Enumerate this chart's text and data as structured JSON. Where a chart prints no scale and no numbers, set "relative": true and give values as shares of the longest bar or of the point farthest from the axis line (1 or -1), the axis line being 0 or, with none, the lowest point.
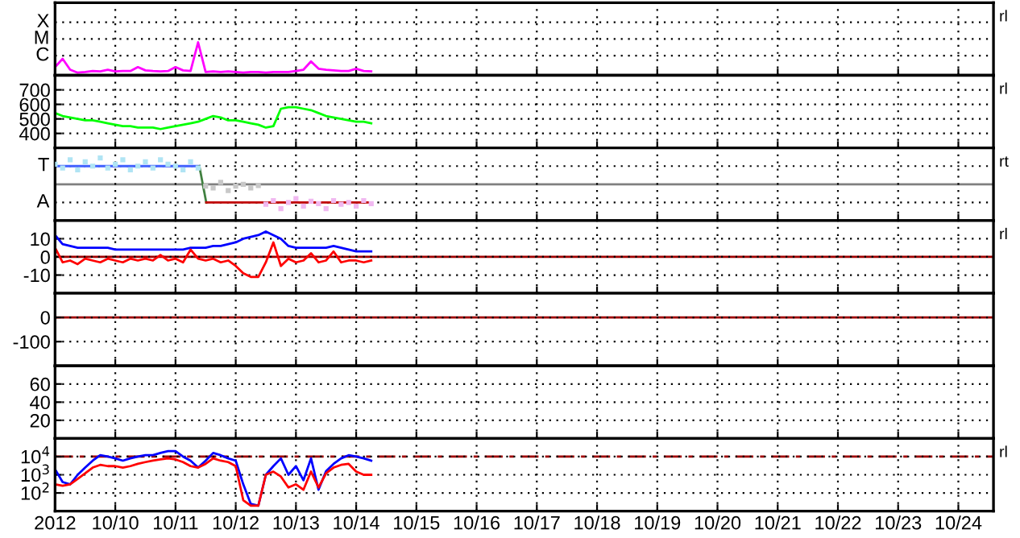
{
  "chart_data": [
    {
      "type": "line",
      "grid": "x",
      "relative": true,
      "tick_labels": false,
      "xlim": [
        "2012-10-09",
        "2012-10-24T14:00"
      ],
      "xticks": [
        {
          "value": "2012-10-10",
          "label": null
        },
        {
          "value": "2012-10-11",
          "label": null
        },
        {
          "value": "2012-10-12",
          "label": null
        },
        {
          "value": "2012-10-13",
          "label": null
        },
        {
          "value": "2012-10-14",
          "label": null
        },
        {
          "value": "2012-10-15",
          "label": null
        },
        {
          "value": "2012-10-16",
          "label": null
        },
        {
          "value": "2012-10-17",
          "label": null
        },
        {
          "value": "2012-10-18",
          "label": null
        },
        {
          "value": "2012-10-19",
          "label": null
        },
        {
          "value": "2012-10-20",
          "label": null
        },
        {
          "value": "2012-10-21",
          "label": null
        },
        {
          "value": "2012-10-22",
          "label": null
        },
        {
          "value": "2012-10-23",
          "label": null
        },
        {
          "value": "2012-10-24",
          "label": null
        }
      ],
      "x": [
        "2012-10-09T00:00",
        "2012-10-09T03:00",
        "2012-10-09T06:00",
        "2012-10-09T09:00",
        "2012-10-09T12:00",
        "2012-10-09T15:00",
        "2012-10-09T18:00",
        "2012-10-09T21:00",
        "2012-10-10T00:00",
        "2012-10-10T03:00",
        "2012-10-10T06:00",
        "2012-10-10T09:00",
        "2012-10-10T12:00",
        "2012-10-10T15:00",
        "2012-10-10T18:00",
        "2012-10-10T21:00",
        "2012-10-11T00:00",
        "2012-10-11T03:00",
        "2012-10-11T06:00",
        "2012-10-11T09:00",
        "2012-10-11T12:00",
        "2012-10-11T15:00",
        "2012-10-11T18:00",
        "2012-10-11T21:00",
        "2012-10-12T00:00",
        "2012-10-12T03:00",
        "2012-10-12T06:00",
        "2012-10-12T09:00",
        "2012-10-12T12:00",
        "2012-10-12T15:00",
        "2012-10-12T18:00",
        "2012-10-12T21:00",
        "2012-10-13T00:00",
        "2012-10-13T03:00",
        "2012-10-13T06:00",
        "2012-10-13T09:00",
        "2012-10-13T12:00",
        "2012-10-13T15:00",
        "2012-10-13T18:00",
        "2012-10-13T21:00",
        "2012-10-14T00:00",
        "2012-10-14T03:00",
        "2012-10-14T06:00"
      ],
      "series": [
        {
          "color": "#ff00ff",
          "values": [
            0.25,
            0.5,
            0.17,
            0.08,
            0.1,
            0.13,
            0.12,
            0.17,
            0.12,
            0.13,
            0.13,
            0.25,
            0.15,
            0.13,
            0.12,
            0.13,
            0.25,
            0.15,
            0.13,
            1,
            0.1,
            0.12,
            0.1,
            0.12,
            0.1,
            0.08,
            0.1,
            0.1,
            0.08,
            0.1,
            0.1,
            0.1,
            0.13,
            0.17,
            0.42,
            0.2,
            0.17,
            0.15,
            0.13,
            0.13,
            0.2,
            0.13,
            0.12
          ]
        }
      ],
      "annotations": [
        "rl",
        "X",
        "M",
        "C"
      ]
    },
    {
      "type": "line",
      "grid": true,
      "tick_labels": "y",
      "ylim": [
        300,
        800
      ],
      "yticks": [
        400,
        500,
        600,
        700
      ],
      "xlim": [
        "2012-10-09",
        "2012-10-24T14:00"
      ],
      "xticks": [
        {
          "value": "2012-10-10",
          "label": null
        },
        {
          "value": "2012-10-11",
          "label": null
        },
        {
          "value": "2012-10-12",
          "label": null
        },
        {
          "value": "2012-10-13",
          "label": null
        },
        {
          "value": "2012-10-14",
          "label": null
        },
        {
          "value": "2012-10-15",
          "label": null
        },
        {
          "value": "2012-10-16",
          "label": null
        },
        {
          "value": "2012-10-17",
          "label": null
        },
        {
          "value": "2012-10-18",
          "label": null
        },
        {
          "value": "2012-10-19",
          "label": null
        },
        {
          "value": "2012-10-20",
          "label": null
        },
        {
          "value": "2012-10-21",
          "label": null
        },
        {
          "value": "2012-10-22",
          "label": null
        },
        {
          "value": "2012-10-23",
          "label": null
        },
        {
          "value": "2012-10-24",
          "label": null
        }
      ],
      "x": [
        "2012-10-09T00:00",
        "2012-10-09T03:00",
        "2012-10-09T06:00",
        "2012-10-09T09:00",
        "2012-10-09T12:00",
        "2012-10-09T15:00",
        "2012-10-09T18:00",
        "2012-10-09T21:00",
        "2012-10-10T00:00",
        "2012-10-10T03:00",
        "2012-10-10T06:00",
        "2012-10-10T09:00",
        "2012-10-10T12:00",
        "2012-10-10T15:00",
        "2012-10-10T18:00",
        "2012-10-10T21:00",
        "2012-10-11T00:00",
        "2012-10-11T03:00",
        "2012-10-11T06:00",
        "2012-10-11T09:00",
        "2012-10-11T12:00",
        "2012-10-11T15:00",
        "2012-10-11T18:00",
        "2012-10-11T21:00",
        "2012-10-12T00:00",
        "2012-10-12T03:00",
        "2012-10-12T06:00",
        "2012-10-12T09:00",
        "2012-10-12T12:00",
        "2012-10-12T15:00",
        "2012-10-12T18:00",
        "2012-10-12T21:00",
        "2012-10-13T00:00",
        "2012-10-13T03:00",
        "2012-10-13T06:00",
        "2012-10-13T09:00",
        "2012-10-13T12:00",
        "2012-10-13T15:00",
        "2012-10-13T18:00",
        "2012-10-13T21:00",
        "2012-10-14T00:00",
        "2012-10-14T03:00",
        "2012-10-14T06:00"
      ],
      "series": [
        {
          "color": "#00ff00",
          "values": [
            540,
            520,
            510,
            500,
            490,
            490,
            480,
            470,
            460,
            450,
            450,
            440,
            440,
            440,
            430,
            440,
            450,
            460,
            470,
            480,
            500,
            520,
            510,
            490,
            490,
            480,
            470,
            460,
            440,
            450,
            570,
            580,
            580,
            570,
            560,
            540,
            520,
            510,
            500,
            490,
            480,
            480,
            470
          ]
        }
      ],
      "annotations": [
        "rl"
      ]
    },
    {
      "type": "scatter",
      "grid": "x",
      "relative": true,
      "tick_labels": false,
      "xlim": [
        "2012-10-09",
        "2012-10-24T14:00"
      ],
      "xticks": [
        {
          "value": "2012-10-10",
          "label": null
        },
        {
          "value": "2012-10-11",
          "label": null
        },
        {
          "value": "2012-10-12",
          "label": null
        },
        {
          "value": "2012-10-13",
          "label": null
        },
        {
          "value": "2012-10-14",
          "label": null
        },
        {
          "value": "2012-10-15",
          "label": null
        },
        {
          "value": "2012-10-16",
          "label": null
        },
        {
          "value": "2012-10-17",
          "label": null
        },
        {
          "value": "2012-10-18",
          "label": null
        },
        {
          "value": "2012-10-19",
          "label": null
        },
        {
          "value": "2012-10-20",
          "label": null
        },
        {
          "value": "2012-10-21",
          "label": null
        },
        {
          "value": "2012-10-22",
          "label": null
        },
        {
          "value": "2012-10-23",
          "label": null
        },
        {
          "value": "2012-10-24",
          "label": null
        }
      ],
      "ref_lines": [
        {
          "axis": "y",
          "value": 0.58,
          "label": null,
          "color": "#808080"
        }
      ],
      "series": [
        {
          "color": "#b0e4f4",
          "marker": "square",
          "x": [
            "2012-10-09T00:00",
            "2012-10-09T03:00",
            "2012-10-09T06:00",
            "2012-10-09T09:00",
            "2012-10-09T12:00",
            "2012-10-09T15:00",
            "2012-10-09T18:00",
            "2012-10-09T21:00",
            "2012-10-10T00:00",
            "2012-10-10T03:00",
            "2012-10-10T06:00",
            "2012-10-10T09:00",
            "2012-10-10T12:00",
            "2012-10-10T15:00",
            "2012-10-10T18:00",
            "2012-10-10T21:00",
            "2012-10-11T00:00",
            "2012-10-11T03:00",
            "2012-10-11T06:00",
            "2012-10-11T09:00"
          ],
          "values": [
            0.9,
            0.84,
            0.97,
            0.81,
            0.94,
            0.87,
            1,
            0.84,
            0.9,
            0.97,
            0.81,
            0.87,
            0.94,
            0.84,
            0.97,
            0.9,
            0.87,
            0.81,
            0.94,
            0.84
          ]
        },
        {
          "color": "#c8c8c8",
          "marker": "square",
          "x": [
            "2012-10-11T12:00",
            "2012-10-11T15:00",
            "2012-10-11T18:00",
            "2012-10-11T21:00",
            "2012-10-12T00:00",
            "2012-10-12T03:00",
            "2012-10-12T06:00",
            "2012-10-12T09:00"
          ],
          "values": [
            0.55,
            0.52,
            0.61,
            0.48,
            0.55,
            0.58,
            0.52,
            0.56
          ]
        },
        {
          "color": "#f0b8f0",
          "marker": "square",
          "x": [
            "2012-10-12T12:00",
            "2012-10-12T15:00",
            "2012-10-12T18:00",
            "2012-10-12T21:00",
            "2012-10-13T00:00",
            "2012-10-13T03:00",
            "2012-10-13T06:00",
            "2012-10-13T09:00",
            "2012-10-13T12:00",
            "2012-10-13T15:00",
            "2012-10-13T18:00",
            "2012-10-13T21:00",
            "2012-10-14T00:00",
            "2012-10-14T03:00",
            "2012-10-14T06:00"
          ],
          "values": [
            0.26,
            0.32,
            0.19,
            0.29,
            0.35,
            0.23,
            0.31,
            0.27,
            0.19,
            0.32,
            0.26,
            0.29,
            0.23,
            0.32,
            0.27
          ]
        },
        {
          "type": "line",
          "color": "#4060ff",
          "x": [
            "2012-10-09T00:00",
            "2012-10-11T09:30"
          ],
          "values": [
            0.87,
            0.87
          ]
        },
        {
          "type": "line",
          "color": "#408040",
          "x": [
            "2012-10-11T09:30",
            "2012-10-11T12:15"
          ],
          "values": [
            0.87,
            0.29
          ]
        },
        {
          "type": "line",
          "color": "#c00000",
          "x": [
            "2012-10-11T12:15",
            "2012-10-14T05:30"
          ],
          "values": [
            0.29,
            0.29
          ]
        }
      ],
      "annotations": [
        "rt",
        "T",
        "A"
      ]
    },
    {
      "type": "line",
      "grid": true,
      "tick_labels": "y",
      "ylim": [
        -20,
        20
      ],
      "yticks": [
        -10,
        0,
        10
      ],
      "xlim": [
        "2012-10-09",
        "2012-10-24T14:00"
      ],
      "xticks": [
        {
          "value": "2012-10-10",
          "label": null
        },
        {
          "value": "2012-10-11",
          "label": null
        },
        {
          "value": "2012-10-12",
          "label": null
        },
        {
          "value": "2012-10-13",
          "label": null
        },
        {
          "value": "2012-10-14",
          "label": null
        },
        {
          "value": "2012-10-15",
          "label": null
        },
        {
          "value": "2012-10-16",
          "label": null
        },
        {
          "value": "2012-10-17",
          "label": null
        },
        {
          "value": "2012-10-18",
          "label": null
        },
        {
          "value": "2012-10-19",
          "label": null
        },
        {
          "value": "2012-10-20",
          "label": null
        },
        {
          "value": "2012-10-21",
          "label": null
        },
        {
          "value": "2012-10-22",
          "label": null
        },
        {
          "value": "2012-10-23",
          "label": null
        },
        {
          "value": "2012-10-24",
          "label": null
        }
      ],
      "ref_lines": [
        {
          "axis": "y",
          "value": 0,
          "label": null,
          "color": "#a00000"
        }
      ],
      "x": [
        "2012-10-09T00:00",
        "2012-10-09T03:00",
        "2012-10-09T06:00",
        "2012-10-09T09:00",
        "2012-10-09T12:00",
        "2012-10-09T15:00",
        "2012-10-09T18:00",
        "2012-10-09T21:00",
        "2012-10-10T00:00",
        "2012-10-10T03:00",
        "2012-10-10T06:00",
        "2012-10-10T09:00",
        "2012-10-10T12:00",
        "2012-10-10T15:00",
        "2012-10-10T18:00",
        "2012-10-10T21:00",
        "2012-10-11T00:00",
        "2012-10-11T03:00",
        "2012-10-11T06:00",
        "2012-10-11T09:00",
        "2012-10-11T12:00",
        "2012-10-11T15:00",
        "2012-10-11T18:00",
        "2012-10-11T21:00",
        "2012-10-12T00:00",
        "2012-10-12T03:00",
        "2012-10-12T06:00",
        "2012-10-12T09:00",
        "2012-10-12T12:00",
        "2012-10-12T15:00",
        "2012-10-12T18:00",
        "2012-10-12T21:00",
        "2012-10-13T00:00",
        "2012-10-13T03:00",
        "2012-10-13T06:00",
        "2012-10-13T09:00",
        "2012-10-13T12:00",
        "2012-10-13T15:00",
        "2012-10-13T18:00",
        "2012-10-13T21:00",
        "2012-10-14T00:00",
        "2012-10-14T03:00",
        "2012-10-14T06:00"
      ],
      "series": [
        {
          "color": "#0000ff",
          "values": [
            12,
            7,
            6,
            5,
            5,
            5,
            5,
            5,
            4,
            4,
            4,
            4,
            4,
            4,
            4,
            4,
            4,
            4,
            5,
            5,
            5,
            6,
            6,
            7,
            8,
            10,
            11,
            12,
            14,
            12,
            10,
            6,
            5,
            5,
            5,
            5,
            5,
            6,
            5,
            4,
            3,
            3,
            3
          ]
        },
        {
          "color": "#ff0000",
          "values": [
            5,
            -3,
            -2,
            -4,
            -1,
            -2,
            -3,
            -1,
            -2,
            -3,
            -1,
            -2,
            -1,
            -2,
            1,
            -2,
            -1,
            -3,
            4,
            -1,
            -2,
            -1,
            -3,
            -2,
            -5,
            -9,
            -11,
            -11,
            -3,
            8,
            -5,
            -1,
            -3,
            -2,
            2,
            -3,
            -2,
            3,
            -3,
            -2,
            -2,
            -3,
            -2
          ]
        }
      ],
      "annotations": [
        "rl"
      ]
    },
    {
      "type": "line",
      "grid": true,
      "tick_labels": "y",
      "ylim": [
        -200,
        100
      ],
      "yticks": [
        -100,
        0
      ],
      "xlim": [
        "2012-10-09",
        "2012-10-24T14:00"
      ],
      "xticks": [
        {
          "value": "2012-10-10",
          "label": null
        },
        {
          "value": "2012-10-11",
          "label": null
        },
        {
          "value": "2012-10-12",
          "label": null
        },
        {
          "value": "2012-10-13",
          "label": null
        },
        {
          "value": "2012-10-14",
          "label": null
        },
        {
          "value": "2012-10-15",
          "label": null
        },
        {
          "value": "2012-10-16",
          "label": null
        },
        {
          "value": "2012-10-17",
          "label": null
        },
        {
          "value": "2012-10-18",
          "label": null
        },
        {
          "value": "2012-10-19",
          "label": null
        },
        {
          "value": "2012-10-20",
          "label": null
        },
        {
          "value": "2012-10-21",
          "label": null
        },
        {
          "value": "2012-10-22",
          "label": null
        },
        {
          "value": "2012-10-23",
          "label": null
        },
        {
          "value": "2012-10-24",
          "label": null
        }
      ],
      "ref_lines": [
        {
          "axis": "y",
          "value": 0,
          "label": null,
          "color": "#a00000"
        }
      ]
    },
    {
      "type": "line",
      "grid": true,
      "tick_labels": "y",
      "ylim": [
        0,
        80
      ],
      "yticks": [
        20,
        40,
        60
      ],
      "xlim": [
        "2012-10-09",
        "2012-10-24T14:00"
      ],
      "xticks": [
        {
          "value": "2012-10-10",
          "label": null
        },
        {
          "value": "2012-10-11",
          "label": null
        },
        {
          "value": "2012-10-12",
          "label": null
        },
        {
          "value": "2012-10-13",
          "label": null
        },
        {
          "value": "2012-10-14",
          "label": null
        },
        {
          "value": "2012-10-15",
          "label": null
        },
        {
          "value": "2012-10-16",
          "label": null
        },
        {
          "value": "2012-10-17",
          "label": null
        },
        {
          "value": "2012-10-18",
          "label": null
        },
        {
          "value": "2012-10-19",
          "label": null
        },
        {
          "value": "2012-10-20",
          "label": null
        },
        {
          "value": "2012-10-21",
          "label": null
        },
        {
          "value": "2012-10-22",
          "label": null
        },
        {
          "value": "2012-10-23",
          "label": null
        },
        {
          "value": "2012-10-24",
          "label": null
        }
      ]
    },
    {
      "type": "line",
      "log": "y",
      "grid": true,
      "ylim": [
        10,
        100000
      ],
      "yticks": [
        {
          "value": 100,
          "label": "10$^{2}$"
        },
        {
          "value": 1000,
          "label": "10$^{3}$"
        },
        {
          "value": 10000,
          "label": "10$^{4}$"
        }
      ],
      "xlim": [
        "2012-10-09",
        "2012-10-24T14:00"
      ],
      "xticks": [
        {
          "value": "2012-10-09",
          "label": "2012"
        },
        {
          "value": "2012-10-10",
          "label": "10/10"
        },
        {
          "value": "2012-10-11",
          "label": "10/11"
        },
        {
          "value": "2012-10-12",
          "label": "10/12"
        },
        {
          "value": "2012-10-13",
          "label": "10/13"
        },
        {
          "value": "2012-10-14",
          "label": "10/14"
        },
        {
          "value": "2012-10-15",
          "label": "10/15"
        },
        {
          "value": "2012-10-16",
          "label": "10/16"
        },
        {
          "value": "2012-10-17",
          "label": "10/17"
        },
        {
          "value": "2012-10-18",
          "label": "10/18"
        },
        {
          "value": "2012-10-19",
          "label": "10/19"
        },
        {
          "value": "2012-10-20",
          "label": "10/20"
        },
        {
          "value": "2012-10-21",
          "label": "10/21"
        },
        {
          "value": "2012-10-22",
          "label": "10/22"
        },
        {
          "value": "2012-10-23",
          "label": "10/23"
        },
        {
          "value": "2012-10-24",
          "label": "10/24"
        }
      ],
      "ref_lines": [
        {
          "axis": "y",
          "value": 10000,
          "label": null,
          "color": "#a00000",
          "line_style": "dashed"
        }
      ],
      "x": [
        "2012-10-09T00:00",
        "2012-10-09T03:00",
        "2012-10-09T06:00",
        "2012-10-09T09:00",
        "2012-10-09T12:00",
        "2012-10-09T15:00",
        "2012-10-09T18:00",
        "2012-10-09T21:00",
        "2012-10-10T00:00",
        "2012-10-10T03:00",
        "2012-10-10T06:00",
        "2012-10-10T09:00",
        "2012-10-10T12:00",
        "2012-10-10T15:00",
        "2012-10-10T18:00",
        "2012-10-10T21:00",
        "2012-10-11T00:00",
        "2012-10-11T03:00",
        "2012-10-11T06:00",
        "2012-10-11T09:00",
        "2012-10-11T12:00",
        "2012-10-11T15:00",
        "2012-10-11T18:00",
        "2012-10-11T21:00",
        "2012-10-12T00:00",
        "2012-10-12T03:00",
        "2012-10-12T06:00",
        "2012-10-12T09:00",
        "2012-10-12T12:00",
        "2012-10-12T15:00",
        "2012-10-12T18:00",
        "2012-10-12T21:00",
        "2012-10-13T00:00",
        "2012-10-13T03:00",
        "2012-10-13T06:00",
        "2012-10-13T09:00",
        "2012-10-13T12:00",
        "2012-10-13T15:00",
        "2012-10-13T18:00",
        "2012-10-13T21:00",
        "2012-10-14T00:00",
        "2012-10-14T03:00",
        "2012-10-14T06:00"
      ],
      "series": [
        {
          "color": "#0000ff",
          "values": [
            2000,
            400,
            300,
            1000,
            2500,
            6000,
            12000,
            10000,
            8000,
            6000,
            8000,
            10000,
            12000,
            12000,
            16000,
            20000,
            20000,
            10000,
            6000,
            2500,
            6000,
            16000,
            12000,
            8000,
            6000,
            300,
            25,
            20,
            1000,
            3000,
            8000,
            1000,
            3000,
            500,
            8000,
            150,
            1600,
            4000,
            8000,
            12000,
            10000,
            8000,
            6000
          ]
        },
        {
          "color": "#ff0000",
          "values": [
            300,
            250,
            300,
            600,
            1200,
            2500,
            3500,
            3000,
            3000,
            2500,
            3000,
            4000,
            5000,
            6000,
            7000,
            8000,
            7000,
            5000,
            3000,
            2500,
            4000,
            8000,
            6000,
            5000,
            3000,
            40,
            20,
            20,
            1000,
            1500,
            800,
            200,
            300,
            150,
            1500,
            200,
            1200,
            2500,
            3500,
            4000,
            1500,
            1000,
            1000
          ]
        }
      ],
      "annotations": [
        "rl"
      ]
    }
  ]
}
